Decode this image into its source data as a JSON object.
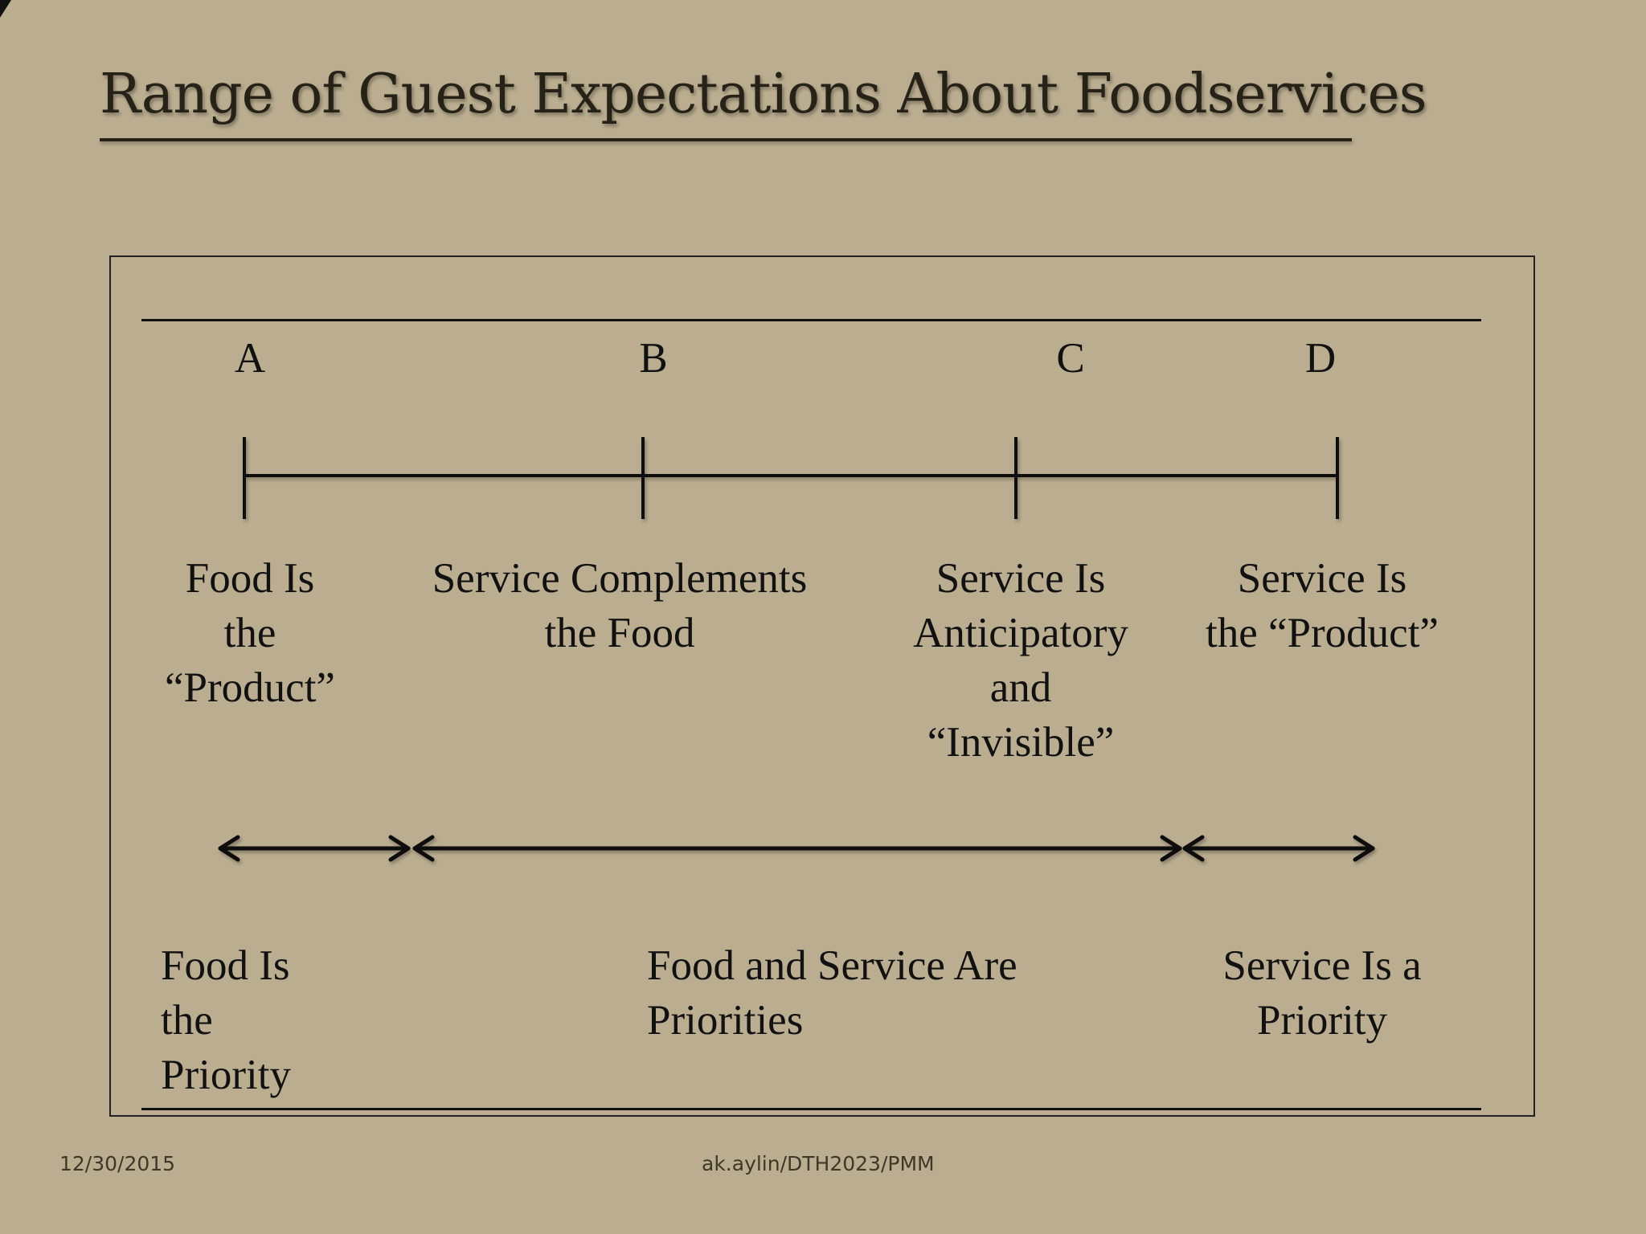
{
  "slide": {
    "title": "Range of Guest Expectations About Foodservices"
  },
  "scale": {
    "points": [
      {
        "letter": "A",
        "description": "Food Is\nthe\n“Product”"
      },
      {
        "letter": "B",
        "description": "Service Complements\nthe Food"
      },
      {
        "letter": "C",
        "description": "Service Is\nAnticipatory\nand\n“Invisible”"
      },
      {
        "letter": "D",
        "description": "Service Is\nthe “Product”"
      }
    ]
  },
  "priorities": [
    {
      "label": "Food Is\n the\n Priority"
    },
    {
      "label": "Food and Service Are\nPriorities"
    },
    {
      "label": "Service Is a\nPriority"
    }
  ],
  "footer": {
    "date": "12/30/2015",
    "author": "ak.aylin/DTH2023/PMM"
  }
}
